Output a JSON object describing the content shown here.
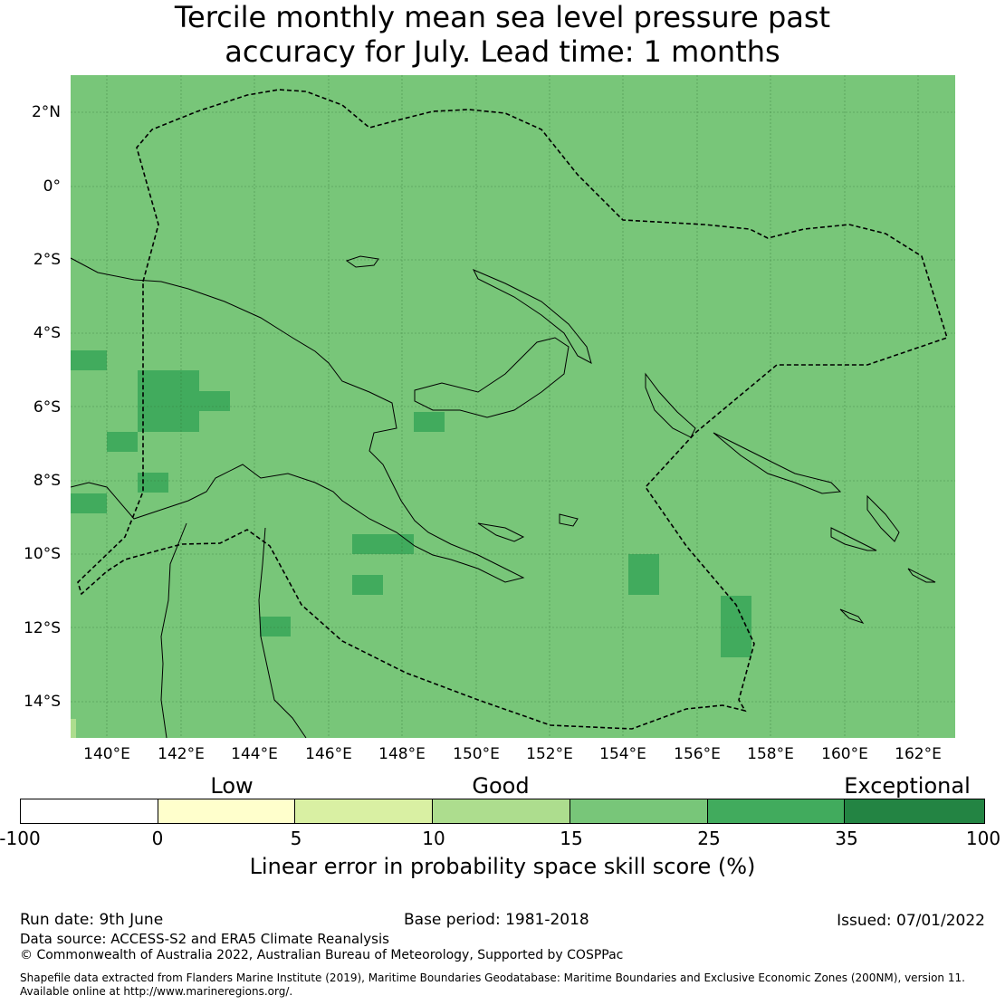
{
  "title": {
    "line1": "Tercile monthly mean sea level pressure past",
    "line2": "accuracy for July. Lead time: 1 months"
  },
  "map": {
    "background_color": "#78c679",
    "lat_labels": [
      "2°N",
      "0°",
      "2°S",
      "4°S",
      "6°S",
      "8°S",
      "10°S",
      "12°S",
      "14°S"
    ],
    "lon_labels": [
      "140°E",
      "142°E",
      "144°E",
      "146°E",
      "148°E",
      "150°E",
      "152°E",
      "154°E",
      "156°E",
      "158°E",
      "160°E",
      "162°E"
    ],
    "high_skill_color": "#41ab5d",
    "low_skill_color": "#addd8e"
  },
  "legend": {
    "categories": [
      "Low",
      "Good",
      "Exceptional"
    ],
    "colors": [
      "#ffffff",
      "#ffffcc",
      "#d9f0a3",
      "#addd8e",
      "#78c679",
      "#41ab5d",
      "#238443"
    ],
    "ticks": [
      "-100",
      "0",
      "5",
      "10",
      "15",
      "25",
      "35",
      "100"
    ],
    "title": "Linear error in probability space skill score (%)"
  },
  "footer": {
    "run_date": "Run date: 9th June",
    "base_period": "Base period: 1981-2018",
    "issued": "Issued: 07/01/2022",
    "data_source": "Data source: ACCESS-S2 and ERA5 Climate Reanalysis",
    "copyright": "© Commonwealth of Australia 2022, Australian Bureau of Meteorology, Supported by COSPPac",
    "shapefile_line1": "Shapefile data extracted from Flanders Marine Institute (2019), Maritime Boundaries Geodatabase: Maritime Boundaries and Exclusive Economic Zones (200NM), version 11.",
    "shapefile_line2": "Available online at http://www.marineregions.org/."
  }
}
